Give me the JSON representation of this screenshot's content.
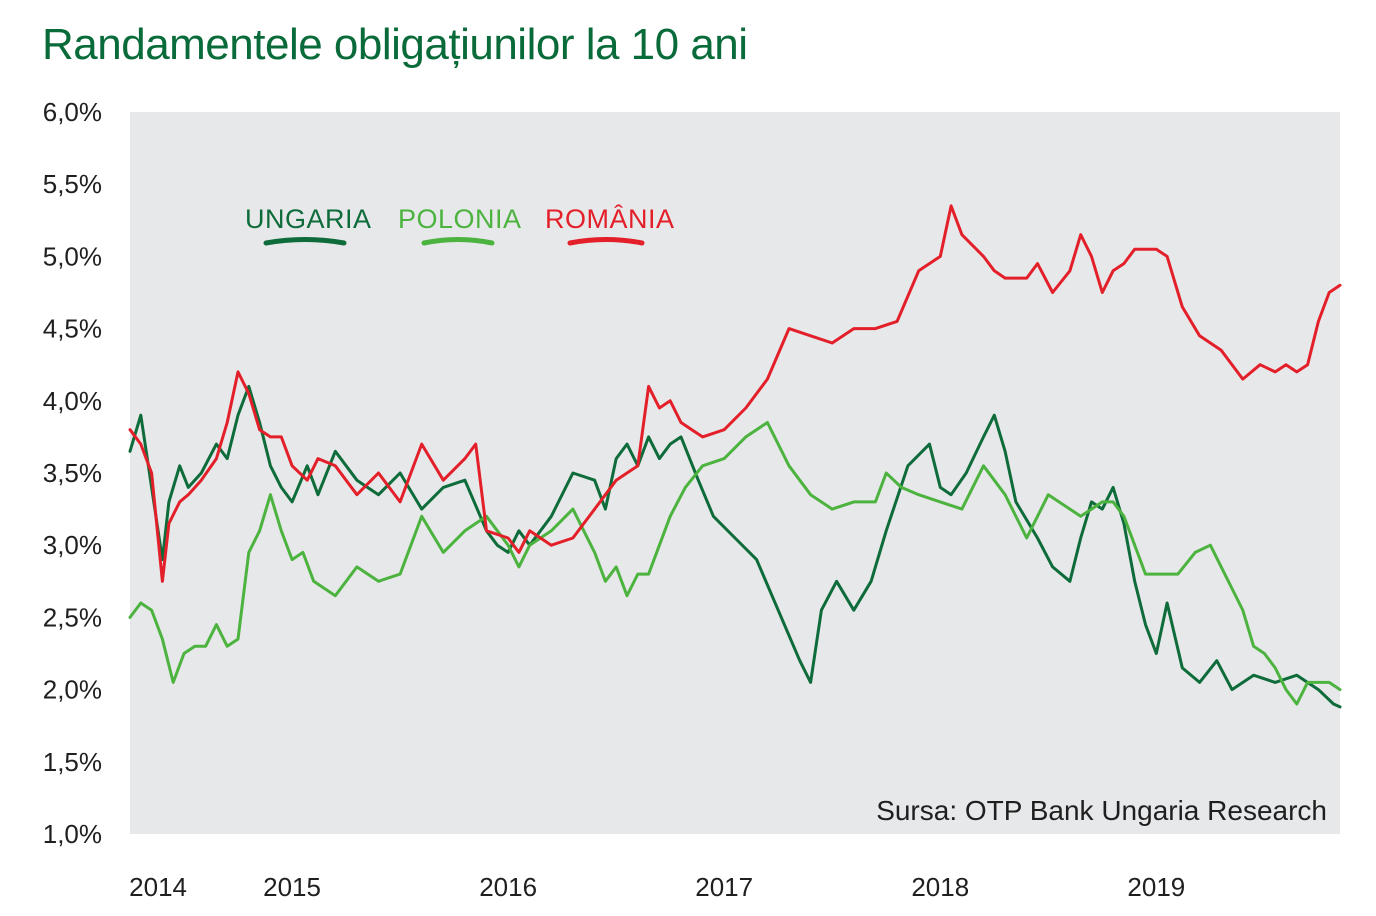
{
  "chart_data": {
    "type": "line",
    "title": "Randamentele obligațiunilor la 10 ani",
    "source": "Sursa: OTP Bank Ungaria Research",
    "ylim": [
      1.0,
      6.0
    ],
    "y_ticks": [
      "6,0%",
      "5,5%",
      "5,0%",
      "4,5%",
      "4,0%",
      "3,5%",
      "3,0%",
      "2,5%",
      "2,0%",
      "1,5%",
      "1,0%"
    ],
    "y_tick_values": [
      6.0,
      5.5,
      5.0,
      4.5,
      4.0,
      3.5,
      3.0,
      2.5,
      2.0,
      1.5,
      1.0
    ],
    "x_range": [
      2013.85,
      2019.45
    ],
    "x_ticks": [
      "2014",
      "2015",
      "2016",
      "2017",
      "2018",
      "2019"
    ],
    "x_tick_values": [
      2013.98,
      2014.6,
      2015.6,
      2016.6,
      2017.6,
      2018.6
    ],
    "grid": false,
    "background_fill": "#e7e8ea",
    "legend_position": "top-left",
    "series": [
      {
        "name": "UNGARIA",
        "color": "#0e6b3a",
        "x": [
          2013.85,
          2013.9,
          2013.95,
          2014.0,
          2014.03,
          2014.08,
          2014.12,
          2014.18,
          2014.25,
          2014.3,
          2014.35,
          2014.4,
          2014.45,
          2014.5,
          2014.55,
          2014.6,
          2014.67,
          2014.72,
          2014.8,
          2014.9,
          2015.0,
          2015.1,
          2015.2,
          2015.3,
          2015.4,
          2015.5,
          2015.55,
          2015.6,
          2015.65,
          2015.7,
          2015.8,
          2015.9,
          2016.0,
          2016.05,
          2016.1,
          2016.15,
          2016.2,
          2016.25,
          2016.3,
          2016.35,
          2016.4,
          2016.48,
          2016.55,
          2016.65,
          2016.75,
          2016.85,
          2016.95,
          2017.0,
          2017.05,
          2017.12,
          2017.2,
          2017.28,
          2017.35,
          2017.45,
          2017.55,
          2017.6,
          2017.65,
          2017.72,
          2017.8,
          2017.85,
          2017.9,
          2017.95,
          2018.05,
          2018.12,
          2018.2,
          2018.25,
          2018.3,
          2018.35,
          2018.4,
          2018.45,
          2018.5,
          2018.55,
          2018.6,
          2018.65,
          2018.72,
          2018.8,
          2018.88,
          2018.95,
          2019.05,
          2019.15,
          2019.25,
          2019.35,
          2019.42,
          2019.45
        ],
        "values": [
          3.65,
          3.9,
          3.4,
          2.9,
          3.3,
          3.55,
          3.4,
          3.5,
          3.7,
          3.6,
          3.9,
          4.1,
          3.85,
          3.55,
          3.4,
          3.3,
          3.55,
          3.35,
          3.65,
          3.45,
          3.35,
          3.5,
          3.25,
          3.4,
          3.45,
          3.1,
          3.0,
          2.95,
          3.1,
          3.0,
          3.2,
          3.5,
          3.45,
          3.25,
          3.6,
          3.7,
          3.55,
          3.75,
          3.6,
          3.7,
          3.75,
          3.45,
          3.2,
          3.05,
          2.9,
          2.55,
          2.2,
          2.05,
          2.55,
          2.75,
          2.55,
          2.75,
          3.1,
          3.55,
          3.7,
          3.4,
          3.35,
          3.5,
          3.75,
          3.9,
          3.65,
          3.3,
          3.05,
          2.85,
          2.75,
          3.05,
          3.3,
          3.25,
          3.4,
          3.15,
          2.75,
          2.45,
          2.25,
          2.6,
          2.15,
          2.05,
          2.2,
          2.0,
          2.1,
          2.05,
          2.1,
          2.0,
          1.9,
          1.88
        ]
      },
      {
        "name": "POLONIA",
        "color": "#4cb33f",
        "x": [
          2013.85,
          2013.9,
          2013.95,
          2014.0,
          2014.05,
          2014.1,
          2014.15,
          2014.2,
          2014.25,
          2014.3,
          2014.35,
          2014.4,
          2014.45,
          2014.5,
          2014.55,
          2014.6,
          2014.65,
          2014.7,
          2014.8,
          2014.9,
          2015.0,
          2015.1,
          2015.2,
          2015.3,
          2015.4,
          2015.5,
          2015.6,
          2015.65,
          2015.7,
          2015.8,
          2015.9,
          2016.0,
          2016.05,
          2016.1,
          2016.15,
          2016.2,
          2016.25,
          2016.3,
          2016.35,
          2016.42,
          2016.5,
          2016.6,
          2016.7,
          2016.8,
          2016.9,
          2017.0,
          2017.1,
          2017.2,
          2017.3,
          2017.35,
          2017.42,
          2017.5,
          2017.6,
          2017.7,
          2017.8,
          2017.9,
          2018.0,
          2018.1,
          2018.2,
          2018.25,
          2018.3,
          2018.35,
          2018.4,
          2018.45,
          2018.5,
          2018.55,
          2018.62,
          2018.7,
          2018.78,
          2018.85,
          2018.9,
          2018.95,
          2019.0,
          2019.05,
          2019.1,
          2019.15,
          2019.2,
          2019.25,
          2019.3,
          2019.35,
          2019.4,
          2019.45
        ],
        "values": [
          2.5,
          2.6,
          2.55,
          2.35,
          2.05,
          2.25,
          2.3,
          2.3,
          2.45,
          2.3,
          2.35,
          2.95,
          3.1,
          3.35,
          3.1,
          2.9,
          2.95,
          2.75,
          2.65,
          2.85,
          2.75,
          2.8,
          3.2,
          2.95,
          3.1,
          3.2,
          3.0,
          2.85,
          3.0,
          3.1,
          3.25,
          2.95,
          2.75,
          2.85,
          2.65,
          2.8,
          2.8,
          3.0,
          3.2,
          3.4,
          3.55,
          3.6,
          3.75,
          3.85,
          3.55,
          3.35,
          3.25,
          3.3,
          3.3,
          3.5,
          3.4,
          3.35,
          3.3,
          3.25,
          3.55,
          3.35,
          3.05,
          3.35,
          3.25,
          3.2,
          3.25,
          3.3,
          3.3,
          3.2,
          3.0,
          2.8,
          2.8,
          2.8,
          2.95,
          3.0,
          2.85,
          2.7,
          2.55,
          2.3,
          2.25,
          2.15,
          2.0,
          1.9,
          2.05,
          2.05,
          2.05,
          2.0
        ]
      },
      {
        "name": "ROMÂNIA",
        "color": "#e3202a",
        "x": [
          2013.85,
          2013.9,
          2013.95,
          2014.0,
          2014.03,
          2014.08,
          2014.12,
          2014.18,
          2014.25,
          2014.3,
          2014.35,
          2014.4,
          2014.45,
          2014.5,
          2014.55,
          2014.6,
          2014.67,
          2014.72,
          2014.8,
          2014.9,
          2015.0,
          2015.1,
          2015.2,
          2015.3,
          2015.4,
          2015.45,
          2015.5,
          2015.6,
          2015.65,
          2015.7,
          2015.8,
          2015.9,
          2016.0,
          2016.05,
          2016.1,
          2016.15,
          2016.2,
          2016.25,
          2016.3,
          2016.35,
          2016.4,
          2016.45,
          2016.5,
          2016.6,
          2016.7,
          2016.8,
          2016.9,
          2017.0,
          2017.1,
          2017.2,
          2017.3,
          2017.4,
          2017.5,
          2017.6,
          2017.65,
          2017.7,
          2017.8,
          2017.85,
          2017.9,
          2018.0,
          2018.05,
          2018.12,
          2018.2,
          2018.25,
          2018.3,
          2018.35,
          2018.4,
          2018.45,
          2018.5,
          2018.55,
          2018.6,
          2018.65,
          2018.72,
          2018.8,
          2018.9,
          2019.0,
          2019.08,
          2019.15,
          2019.2,
          2019.25,
          2019.3,
          2019.35,
          2019.4,
          2019.45
        ],
        "values": [
          3.8,
          3.7,
          3.5,
          2.75,
          3.15,
          3.3,
          3.35,
          3.45,
          3.6,
          3.85,
          4.2,
          4.05,
          3.8,
          3.75,
          3.75,
          3.55,
          3.45,
          3.6,
          3.55,
          3.35,
          3.5,
          3.3,
          3.7,
          3.45,
          3.6,
          3.7,
          3.1,
          3.05,
          2.95,
          3.1,
          3.0,
          3.05,
          3.25,
          3.35,
          3.45,
          3.5,
          3.55,
          4.1,
          3.95,
          4.0,
          3.85,
          3.8,
          3.75,
          3.8,
          3.95,
          4.15,
          4.5,
          4.45,
          4.4,
          4.5,
          4.5,
          4.55,
          4.9,
          5.0,
          5.35,
          5.15,
          5.0,
          4.9,
          4.85,
          4.85,
          4.95,
          4.75,
          4.9,
          5.15,
          5.0,
          4.75,
          4.9,
          4.95,
          5.05,
          5.05,
          5.05,
          5.0,
          4.65,
          4.45,
          4.35,
          4.15,
          4.25,
          4.2,
          4.25,
          4.2,
          4.25,
          4.55,
          4.75,
          4.8
        ]
      }
    ]
  }
}
